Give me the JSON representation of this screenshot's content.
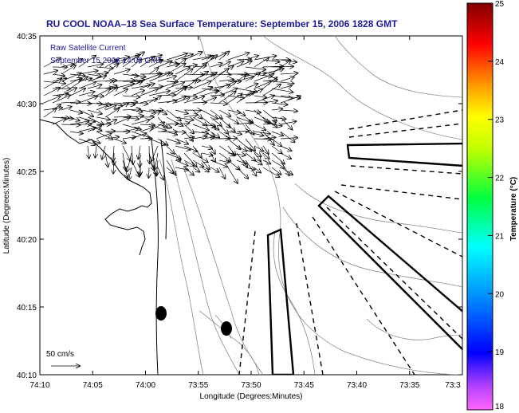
{
  "title": "RU COOL  NOAA–18  Sea Surface Temperature:  September 15, 2006 1828 GMT",
  "overlay": {
    "line1": "Raw Satellite Current",
    "line2": "September 15 2006 14:00 GMT"
  },
  "map": {
    "lat_ticks": [
      "40:35",
      "40:30",
      "40:25",
      "40:20",
      "40:15",
      "40:10"
    ],
    "lon_ticks": [
      "74:10",
      "74:05",
      "74:00",
      "73:55",
      "73:50",
      "73:45",
      "73:40",
      "73:35",
      "73:3"
    ],
    "xlabel": "Longitude (Degrees:Minutes)",
    "ylabel": "Latitude (Degrees:Minutes)",
    "scale_label": "50 cm/s"
  },
  "colorbar": {
    "label": "Temperature (°C)",
    "ticks": [
      "25",
      "24",
      "23",
      "22",
      "21",
      "20",
      "19",
      "18"
    ],
    "range": [
      18,
      25
    ],
    "colors": [
      "#ff66ff",
      "#0000ff",
      "#00ffff",
      "#00ff00",
      "#ffff00",
      "#ff7f00",
      "#ff0000",
      "#800000"
    ]
  },
  "colors": {
    "title": "#1a1a9a",
    "contour": "#888888",
    "frame": "#000000"
  }
}
